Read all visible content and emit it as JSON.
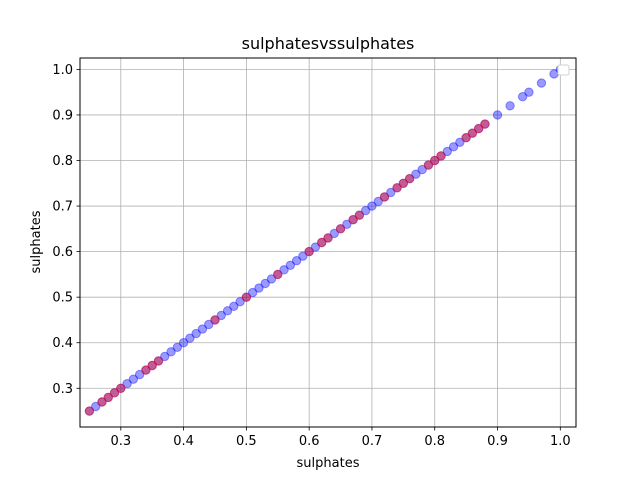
{
  "chart_data": {
    "type": "scatter",
    "title": "sulphatesvssulphates",
    "xlabel": "sulphates",
    "ylabel": "sulphates",
    "xlim": [
      0.235,
      1.025
    ],
    "ylim": [
      0.215,
      1.025
    ],
    "xticks": [
      "0.3",
      "0.4",
      "0.5",
      "0.6",
      "0.7",
      "0.8",
      "0.9",
      "1.0"
    ],
    "yticks": [
      "0.3",
      "0.4",
      "0.5",
      "0.6",
      "0.7",
      "0.8",
      "0.9",
      "1.0"
    ],
    "grid": true,
    "legend": "top-right",
    "colors": {
      "blue": "#0000ff",
      "red": "#ff0000"
    },
    "series": [
      {
        "color": "#0000ff",
        "x": [
          0.25,
          0.26,
          0.27,
          0.28,
          0.29,
          0.3,
          0.31,
          0.32,
          0.33,
          0.34,
          0.35,
          0.36,
          0.37,
          0.38,
          0.39,
          0.4,
          0.41,
          0.42,
          0.43,
          0.44,
          0.45,
          0.46,
          0.47,
          0.48,
          0.49,
          0.5,
          0.51,
          0.52,
          0.53,
          0.54,
          0.55,
          0.56,
          0.57,
          0.58,
          0.59,
          0.6,
          0.61,
          0.62,
          0.63,
          0.64,
          0.65,
          0.66,
          0.67,
          0.68,
          0.69,
          0.7,
          0.71,
          0.72,
          0.73,
          0.74,
          0.75,
          0.76,
          0.77,
          0.78,
          0.79,
          0.8,
          0.81,
          0.82,
          0.83,
          0.84,
          0.85,
          0.86,
          0.87,
          0.88,
          0.9,
          0.92,
          0.94,
          0.95,
          0.97,
          0.99,
          1.0
        ],
        "y": [
          0.25,
          0.26,
          0.27,
          0.28,
          0.29,
          0.3,
          0.31,
          0.32,
          0.33,
          0.34,
          0.35,
          0.36,
          0.37,
          0.38,
          0.39,
          0.4,
          0.41,
          0.42,
          0.43,
          0.44,
          0.45,
          0.46,
          0.47,
          0.48,
          0.49,
          0.5,
          0.51,
          0.52,
          0.53,
          0.54,
          0.55,
          0.56,
          0.57,
          0.58,
          0.59,
          0.6,
          0.61,
          0.62,
          0.63,
          0.64,
          0.65,
          0.66,
          0.67,
          0.68,
          0.69,
          0.7,
          0.71,
          0.72,
          0.73,
          0.74,
          0.75,
          0.76,
          0.77,
          0.78,
          0.79,
          0.8,
          0.81,
          0.82,
          0.83,
          0.84,
          0.85,
          0.86,
          0.87,
          0.88,
          0.9,
          0.92,
          0.94,
          0.95,
          0.97,
          0.99,
          1.0
        ]
      },
      {
        "color": "#ff0000",
        "x": [
          0.25,
          0.27,
          0.28,
          0.29,
          0.3,
          0.34,
          0.35,
          0.36,
          0.45,
          0.5,
          0.55,
          0.6,
          0.62,
          0.63,
          0.65,
          0.67,
          0.68,
          0.72,
          0.74,
          0.75,
          0.76,
          0.79,
          0.8,
          0.81,
          0.85,
          0.86,
          0.87,
          0.88
        ],
        "y": [
          0.25,
          0.27,
          0.28,
          0.29,
          0.3,
          0.34,
          0.35,
          0.36,
          0.45,
          0.5,
          0.55,
          0.6,
          0.62,
          0.63,
          0.65,
          0.67,
          0.68,
          0.72,
          0.74,
          0.75,
          0.76,
          0.79,
          0.8,
          0.81,
          0.85,
          0.86,
          0.87,
          0.88
        ]
      }
    ]
  }
}
